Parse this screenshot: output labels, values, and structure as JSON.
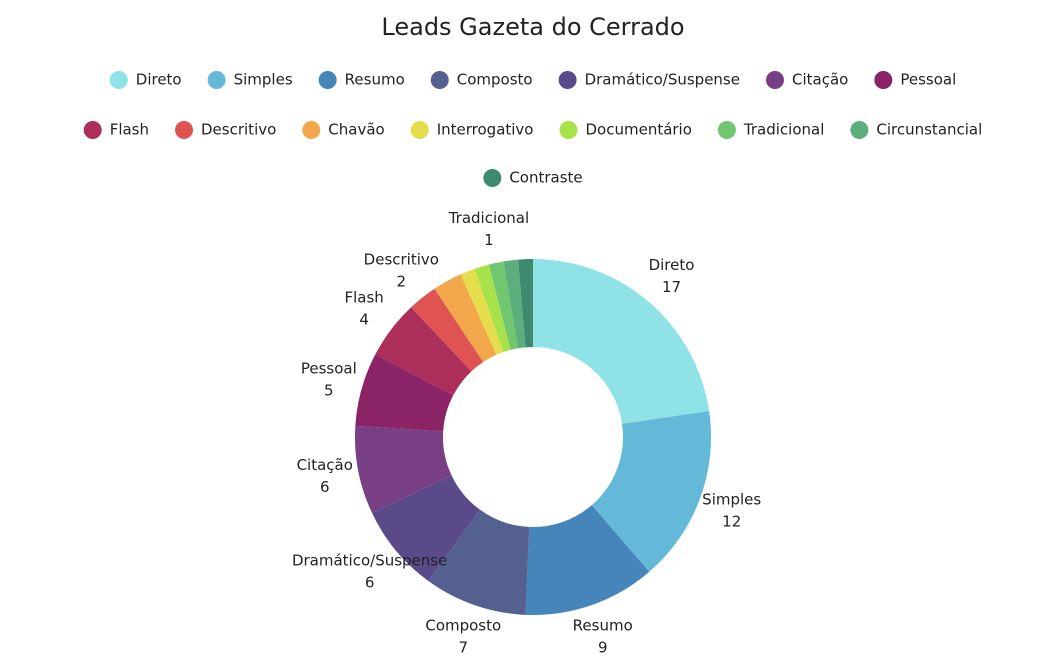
{
  "chart_data": {
    "type": "donut",
    "title": "Leads Gazeta do Cerrado",
    "categories": [
      "Direto",
      "Simples",
      "Resumo",
      "Composto",
      "Dramático/Suspense",
      "Citação",
      "Pessoal",
      "Flash",
      "Descritivo",
      "Chavão",
      "Interrogativo",
      "Documentário",
      "Tradicional",
      "Circunstancial",
      "Contraste"
    ],
    "values": [
      17,
      12,
      9,
      7,
      6,
      6,
      5,
      4,
      2,
      2,
      1,
      1,
      1,
      1,
      1
    ],
    "colors": [
      "#8fe3e6",
      "#64b8d8",
      "#4685b9",
      "#54608f",
      "#5b4a8a",
      "#783f85",
      "#8b2367",
      "#ab2f5a",
      "#df5453",
      "#f2a74b",
      "#e6dd4d",
      "#a8e24a",
      "#70c76f",
      "#5caf7d",
      "#3e8a6f"
    ],
    "data_labels": [
      true,
      true,
      true,
      true,
      true,
      true,
      true,
      true,
      true,
      false,
      false,
      false,
      true,
      false,
      false
    ],
    "legend": "top"
  }
}
